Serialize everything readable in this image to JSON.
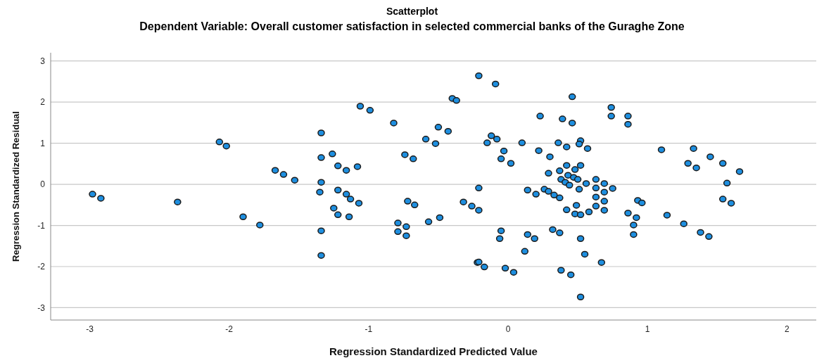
{
  "chart_data": {
    "type": "scatter",
    "title": "Scatterplot",
    "subtitle": "Dependent Variable: Overall customer satisfaction in selected commercial banks of the Guraghe Zone",
    "xlabel": "Regression Standardized Predicted Value",
    "ylabel": "Regression Standardized Residual",
    "xlim": [
      -3.28,
      2.21
    ],
    "ylim": [
      -3.3,
      3.2
    ],
    "xticks": [
      -3,
      -2,
      -1,
      0,
      1,
      2
    ],
    "yticks": [
      -3,
      -2,
      -1,
      0,
      1,
      2,
      3
    ],
    "grid": "y",
    "marker": "circle",
    "series": [
      {
        "color": "#1e8fe0",
        "x": [
          -2.98,
          -2.92,
          -2.37,
          -2.07,
          -2.02,
          -1.9,
          -1.78,
          -1.67,
          -1.61,
          -1.53,
          -1.34,
          -1.34,
          -1.26,
          -1.22,
          -1.16,
          -1.08,
          -1.34,
          -1.35,
          -1.22,
          -1.16,
          -1.13,
          -1.07,
          -1.25,
          -1.22,
          -1.14,
          -1.34,
          -1.34,
          -1.06,
          -0.99,
          -0.82,
          -0.59,
          -0.74,
          -0.68,
          -0.72,
          -0.67,
          -0.79,
          -0.73,
          -0.79,
          -0.73,
          -0.57,
          -0.21,
          -0.09,
          -0.4,
          -0.37,
          0.23,
          0.39,
          -0.5,
          -0.43,
          -0.52,
          -0.12,
          -0.15,
          -0.08,
          0.1,
          0.36,
          -0.03,
          -0.05,
          0.02,
          0.22,
          0.3,
          0.29,
          0.37,
          0.38,
          -0.21,
          0.14,
          0.2,
          0.26,
          0.29,
          0.33,
          0.37,
          -0.32,
          -0.26,
          -0.21,
          -0.49,
          -0.05,
          -0.06,
          0.14,
          0.19,
          0.32,
          0.37,
          0.12,
          -0.22,
          -0.21,
          -0.17,
          -0.02,
          0.04,
          0.38,
          0.46,
          0.74,
          0.74,
          0.86,
          0.86,
          0.46,
          0.52,
          0.51,
          0.42,
          0.57,
          1.1,
          1.33,
          1.45,
          1.54,
          1.66,
          1.29,
          1.35,
          1.57,
          1.54,
          1.6,
          0.42,
          0.52,
          0.48,
          0.43,
          0.47,
          0.5,
          0.41,
          0.44,
          0.56,
          0.63,
          0.69,
          0.75,
          0.51,
          0.63,
          0.69,
          0.63,
          0.69,
          0.63,
          0.49,
          0.42,
          0.69,
          0.48,
          0.52,
          0.58,
          0.93,
          0.96,
          0.86,
          0.92,
          1.14,
          0.9,
          0.9,
          1.26,
          1.38,
          1.44,
          0.52,
          0.55,
          0.67,
          0.45,
          0.52
        ],
        "values": [
          -0.24,
          -0.34,
          -0.43,
          1.03,
          0.93,
          -0.79,
          -0.99,
          0.34,
          0.24,
          0.1,
          1.25,
          0.65,
          0.74,
          0.45,
          0.34,
          0.43,
          0.05,
          -0.19,
          -0.14,
          -0.24,
          -0.36,
          -0.46,
          -0.58,
          -0.74,
          -0.79,
          -1.13,
          -1.73,
          1.9,
          1.8,
          1.49,
          1.1,
          0.72,
          0.62,
          -0.41,
          -0.5,
          -0.94,
          -1.03,
          -1.15,
          -1.25,
          -0.91,
          2.64,
          2.44,
          2.09,
          2.04,
          1.66,
          1.59,
          1.39,
          1.29,
          0.99,
          1.18,
          1.01,
          1.1,
          1.01,
          1.01,
          0.81,
          0.62,
          0.51,
          0.82,
          0.67,
          0.27,
          0.33,
          0.12,
          -0.09,
          -0.14,
          -0.24,
          -0.12,
          -0.17,
          -0.26,
          -0.33,
          -0.43,
          -0.53,
          -0.63,
          -0.81,
          -1.13,
          -1.32,
          -1.22,
          -1.32,
          -1.1,
          -1.18,
          -1.63,
          -1.9,
          -1.89,
          -2.01,
          -2.04,
          -2.14,
          -2.09,
          2.13,
          1.87,
          1.66,
          1.66,
          1.46,
          1.49,
          1.06,
          0.98,
          0.91,
          0.87,
          0.84,
          0.87,
          0.67,
          0.51,
          0.31,
          0.51,
          0.4,
          0.03,
          -0.36,
          -0.46,
          0.46,
          0.46,
          0.36,
          0.22,
          0.17,
          0.12,
          0.05,
          -0.02,
          0.02,
          0.12,
          0.02,
          -0.1,
          -0.12,
          -0.09,
          -0.19,
          -0.31,
          -0.41,
          -0.53,
          -0.51,
          -0.62,
          -0.63,
          -0.72,
          -0.74,
          -0.67,
          -0.39,
          -0.45,
          -0.7,
          -0.81,
          -0.75,
          -0.99,
          -1.22,
          -0.96,
          -1.17,
          -1.27,
          -1.32,
          -1.7,
          -1.9,
          -2.2,
          -2.74
        ]
      }
    ]
  }
}
